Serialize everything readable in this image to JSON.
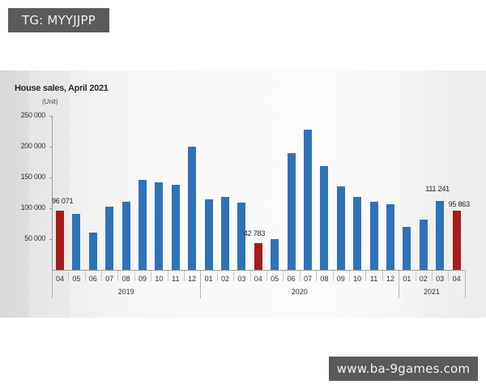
{
  "watermarks": {
    "top": "TG: MYYJJPP",
    "bottom": "www.ba-9games.com"
  },
  "colors": {
    "normal_bar": "#2f72b8",
    "highlight_bar": "#a51c1c"
  },
  "chart_data": {
    "type": "bar",
    "title": "House sales, April 2021",
    "ylabel": "(Unit)",
    "xlabel": "",
    "ylim": [
      0,
      250000
    ],
    "yticks": [
      "250 000",
      "200 000",
      "150 000",
      "100 000",
      "50 000"
    ],
    "ytick_values": [
      250000,
      200000,
      150000,
      100000,
      50000
    ],
    "grid": false,
    "legend": null,
    "years": [
      {
        "label": "2019",
        "months": 9
      },
      {
        "label": "2020",
        "months": 12
      },
      {
        "label": "2021",
        "months": 4
      }
    ],
    "categories": [
      "04",
      "05",
      "06",
      "07",
      "08",
      "09",
      "10",
      "11",
      "12",
      "01",
      "02",
      "03",
      "04",
      "05",
      "06",
      "07",
      "08",
      "09",
      "10",
      "11",
      "12",
      "01",
      "02",
      "03",
      "04"
    ],
    "periods": [
      "2019-04",
      "2019-05",
      "2019-06",
      "2019-07",
      "2019-08",
      "2019-09",
      "2019-10",
      "2019-11",
      "2019-12",
      "2020-01",
      "2020-02",
      "2020-03",
      "2020-04",
      "2020-05",
      "2020-06",
      "2020-07",
      "2020-08",
      "2020-09",
      "2020-10",
      "2020-11",
      "2020-12",
      "2021-01",
      "2021-02",
      "2021-03",
      "2021-04"
    ],
    "values": [
      96071,
      91000,
      60000,
      102000,
      111000,
      146000,
      142000,
      138000,
      200000,
      114000,
      119000,
      109000,
      42783,
      50000,
      189000,
      228000,
      169000,
      136000,
      119000,
      111000,
      106000,
      70000,
      81000,
      111241,
      95863
    ],
    "highlighted": [
      0,
      12,
      24
    ],
    "annotations": [
      {
        "index": 0,
        "text": "96 071"
      },
      {
        "index": 12,
        "text": "42 783"
      },
      {
        "index": 23,
        "text": "111 241"
      },
      {
        "index": 24,
        "text": "95 863"
      }
    ]
  }
}
